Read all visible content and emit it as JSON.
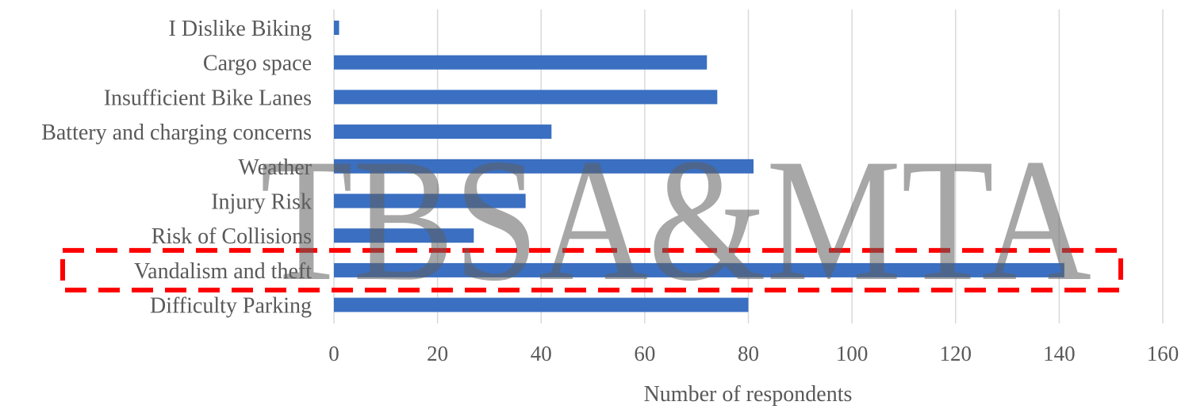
{
  "chart_data": {
    "type": "bar",
    "orientation": "horizontal",
    "categories": [
      "I Dislike Biking",
      "Cargo space",
      "Insufficient Bike Lanes",
      "Battery and charging concerns",
      "Weather",
      "Injury Risk",
      "Risk of Collisions",
      "Vandalism and theft",
      "Difficulty Parking"
    ],
    "values": [
      1,
      72,
      74,
      42,
      81,
      37,
      27,
      141,
      80
    ],
    "title": "",
    "xlabel": "Number of respondents",
    "ylabel": "",
    "xlim": [
      0,
      160
    ],
    "xticks": [
      0,
      20,
      40,
      60,
      80,
      100,
      120,
      140,
      160
    ],
    "grid": "vertical",
    "legend": "none",
    "highlighted_category": "Vandalism and theft",
    "highlight_style": "red dashed box",
    "watermark": "TBSA&MTA"
  },
  "colors": {
    "bar": "#3a6fc1",
    "grid": "#d9d9d9",
    "highlight": "#ff0000",
    "watermark": "rgba(95,95,95,0.55)",
    "text": "#595959"
  }
}
